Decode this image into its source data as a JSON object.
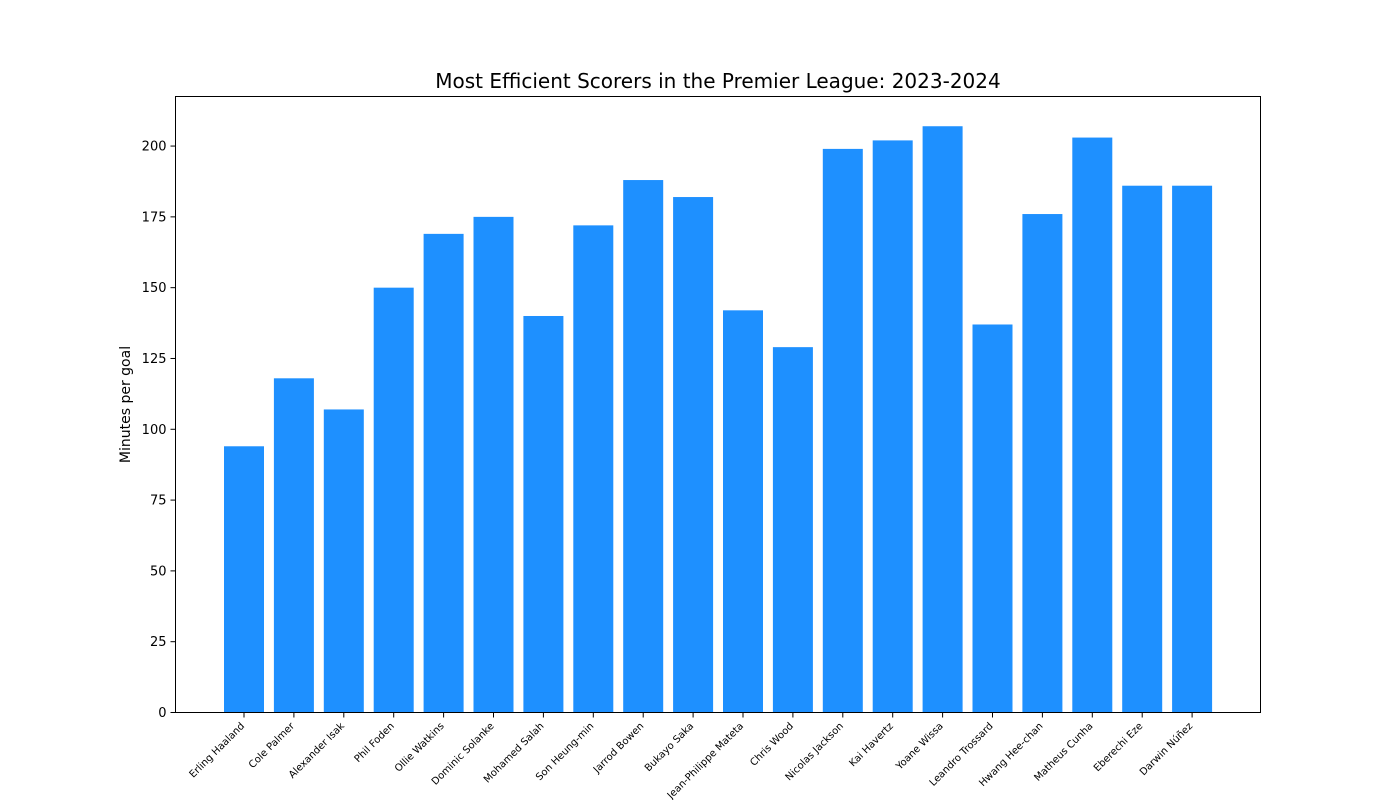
{
  "colors": {
    "bar": "#1e90ff",
    "axis": "#000000",
    "background": "#ffffff"
  },
  "chart_data": {
    "type": "bar",
    "title": "Most Efficient Scorers in the Premier League: 2023-2024",
    "xlabel": "",
    "ylabel": "Minutes per goal",
    "ylim": [
      0,
      217.5
    ],
    "yticks": [
      0,
      25,
      50,
      75,
      100,
      125,
      150,
      175,
      200
    ],
    "grid": false,
    "legend": "none",
    "categories": [
      "Erling Haaland",
      "Cole Palmer",
      "Alexander Isak",
      "Phil Foden",
      "Ollie Watkins",
      "Dominic Solanke",
      "Mohamed Salah",
      "Son Heung-min",
      "Jarrod Bowen",
      "Bukayo Saka",
      "Jean-Philippe Mateta",
      "Chris Wood",
      "Nicolas Jackson",
      "Kai Havertz",
      "Yoane Wissa",
      "Leandro Trossard",
      "Hwang Hee-chan",
      "Matheus Cunha",
      "Eberechi Eze",
      "Darwin Núñez"
    ],
    "values": [
      94,
      118,
      107,
      150,
      169,
      175,
      140,
      172,
      188,
      182,
      142,
      129,
      199,
      202,
      207,
      137,
      176,
      203,
      186,
      186
    ]
  }
}
